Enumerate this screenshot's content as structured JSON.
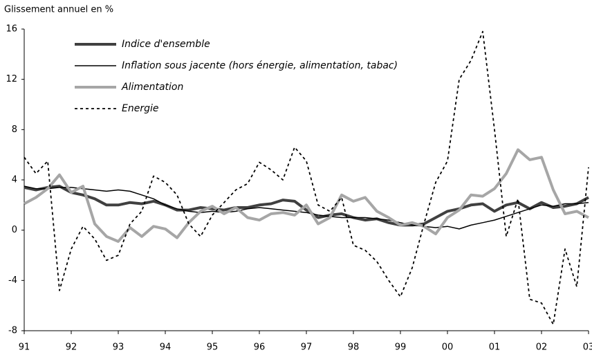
{
  "chart_data": {
    "type": "line",
    "y_label": "Glissement annuel en %",
    "x": [
      1991,
      1991.25,
      1991.5,
      1991.75,
      1992,
      1992.25,
      1992.5,
      1992.75,
      1993,
      1993.25,
      1993.5,
      1993.75,
      1994,
      1994.25,
      1994.5,
      1994.75,
      1995,
      1995.25,
      1995.5,
      1995.75,
      1996,
      1996.25,
      1996.5,
      1996.75,
      1997,
      1997.25,
      1997.5,
      1997.75,
      1998,
      1998.25,
      1998.5,
      1998.75,
      1999,
      1999.25,
      1999.5,
      1999.75,
      2000,
      2000.25,
      2000.5,
      2000.75,
      2001,
      2001.25,
      2001.5,
      2001.75,
      2002,
      2002.25,
      2002.5,
      2002.75,
      2003
    ],
    "series": [
      {
        "name": "Indice d'ensemble",
        "color": "#404040",
        "style": "thick",
        "values": [
          3.4,
          3.2,
          3.4,
          3.5,
          3.0,
          2.8,
          2.5,
          2.0,
          2.0,
          2.2,
          2.1,
          2.3,
          2.0,
          1.6,
          1.6,
          1.8,
          1.7,
          1.6,
          1.8,
          1.8,
          2.0,
          2.1,
          2.4,
          2.3,
          1.6,
          1.0,
          1.2,
          1.3,
          1.0,
          0.8,
          0.9,
          0.6,
          0.4,
          0.4,
          0.5,
          1.0,
          1.5,
          1.7,
          2.0,
          2.1,
          1.5,
          2.0,
          2.2,
          1.7,
          2.2,
          1.8,
          1.9,
          2.1,
          2.6
        ]
      },
      {
        "name": "Inflation sous jacente (hors énergie, alimentation, tabac)",
        "color": "#000000",
        "style": "thin",
        "values": [
          3.5,
          3.3,
          3.3,
          3.4,
          3.4,
          3.3,
          3.2,
          3.1,
          3.2,
          3.1,
          2.8,
          2.5,
          2.0,
          1.7,
          1.5,
          1.4,
          1.5,
          1.4,
          1.5,
          1.7,
          1.8,
          1.7,
          1.6,
          1.5,
          1.4,
          1.2,
          1.1,
          1.0,
          1.0,
          1.0,
          0.9,
          0.8,
          0.6,
          0.4,
          0.3,
          0.2,
          0.3,
          0.1,
          0.4,
          0.6,
          0.8,
          1.1,
          1.4,
          1.7,
          2.0,
          1.9,
          2.1,
          2.1,
          2.2
        ]
      },
      {
        "name": "Alimentation",
        "color": "#a6a6a6",
        "style": "thick",
        "values": [
          2.1,
          2.6,
          3.3,
          4.4,
          3.0,
          3.5,
          0.5,
          -0.5,
          -0.9,
          0.2,
          -0.5,
          0.3,
          0.1,
          -0.6,
          0.6,
          1.5,
          1.9,
          1.3,
          1.8,
          1.0,
          0.8,
          1.3,
          1.4,
          1.2,
          2.0,
          0.5,
          1.0,
          2.8,
          2.3,
          2.6,
          1.5,
          1.0,
          0.4,
          0.6,
          0.3,
          -0.3,
          1.0,
          1.6,
          2.8,
          2.7,
          3.3,
          4.5,
          6.4,
          5.6,
          5.8,
          3.2,
          1.3,
          1.5,
          1.0
        ]
      },
      {
        "name": "Energie",
        "color": "#000000",
        "style": "dashed",
        "values": [
          5.8,
          4.5,
          5.5,
          -4.8,
          -1.5,
          0.3,
          -0.7,
          -2.4,
          -2.0,
          0.5,
          1.5,
          4.3,
          3.8,
          2.8,
          0.5,
          -0.5,
          1.2,
          2.2,
          3.2,
          3.7,
          5.4,
          4.8,
          4.0,
          6.6,
          5.5,
          2.0,
          1.5,
          2.6,
          -1.2,
          -1.6,
          -2.5,
          -4.0,
          -5.3,
          -3.0,
          0.5,
          3.8,
          5.5,
          12.0,
          13.5,
          15.8,
          8.0,
          -0.5,
          2.5,
          -5.5,
          -5.8,
          -7.5,
          -1.5,
          -4.5,
          5.0
        ]
      }
    ],
    "xlim": [
      1991,
      2003
    ],
    "xticks": [
      {
        "value": 1991,
        "label": "91"
      },
      {
        "value": 1992,
        "label": "92"
      },
      {
        "value": 1993,
        "label": "93"
      },
      {
        "value": 1994,
        "label": "94"
      },
      {
        "value": 1995,
        "label": "95"
      },
      {
        "value": 1996,
        "label": "96"
      },
      {
        "value": 1997,
        "label": "97"
      },
      {
        "value": 1998,
        "label": "98"
      },
      {
        "value": 1999,
        "label": "99"
      },
      {
        "value": 2000,
        "label": "00"
      },
      {
        "value": 2001,
        "label": "01"
      },
      {
        "value": 2002,
        "label": "02"
      },
      {
        "value": 2003,
        "label": "03"
      }
    ],
    "ylim": [
      -8,
      16
    ],
    "yticks": [
      -8,
      -4,
      0,
      4,
      8,
      12,
      16
    ]
  }
}
